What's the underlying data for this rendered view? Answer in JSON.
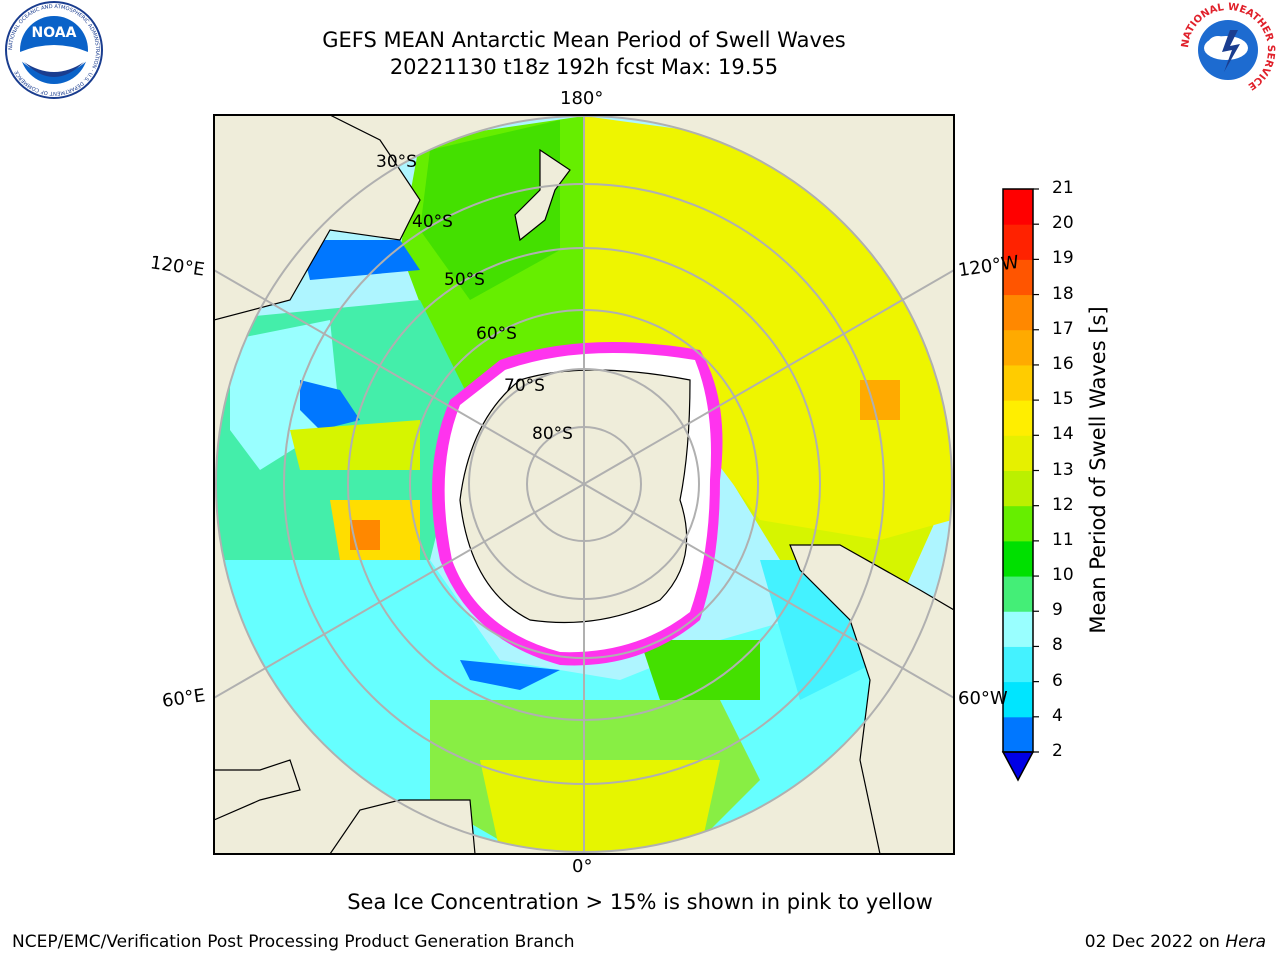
{
  "title_line1": "GEFS MEAN Antarctic Mean Period of Swell Waves",
  "title_line2": "20221130 t18z 192h fcst   Max: 19.55",
  "logos": {
    "left": "noaa-logo",
    "right": "nws-logo"
  },
  "logo_text": {
    "noaa": "NOAA",
    "noaa_ring": "NATIONAL OCEANIC AND ATMOSPHERIC ADMINISTRATION · U.S. DEPARTMENT OF COMMERCE",
    "nws_ring": "NATIONAL WEATHER SERVICE"
  },
  "map": {
    "projection": "south polar stereographic",
    "longitude_labels": {
      "top": "180°",
      "bottom": "0°",
      "upper_left": "120°E",
      "upper_right": "120°W",
      "lower_left": "60°E",
      "lower_right": "60°W"
    },
    "latitude_labels": [
      "30°S",
      "40°S",
      "50°S",
      "60°S",
      "70°S",
      "80°S"
    ]
  },
  "colorbar": {
    "label": "Mean Period of Swell Waves [s]",
    "ticks": [
      "2",
      "4",
      "6",
      "8",
      "9",
      "10",
      "11",
      "12",
      "13",
      "14",
      "15",
      "16",
      "17",
      "18",
      "19",
      "20",
      "21"
    ],
    "colors": [
      "#0000e6",
      "#0077ff",
      "#00e5ff",
      "#44f2ff",
      "#99ffff",
      "#44ee77",
      "#00e000",
      "#66ee00",
      "#bbf000",
      "#e6f000",
      "#ffee00",
      "#ffcc00",
      "#ffaa00",
      "#ff8800",
      "#ff5500",
      "#ff2200",
      "#ff0000"
    ]
  },
  "note": "Sea Ice Concentration > 15% is shown in pink to yellow",
  "footer": {
    "left": "NCEP/EMC/Verification Post Processing Product Generation Branch",
    "right_date": "02 Dec 2022 on ",
    "right_machine": "Hera"
  }
}
